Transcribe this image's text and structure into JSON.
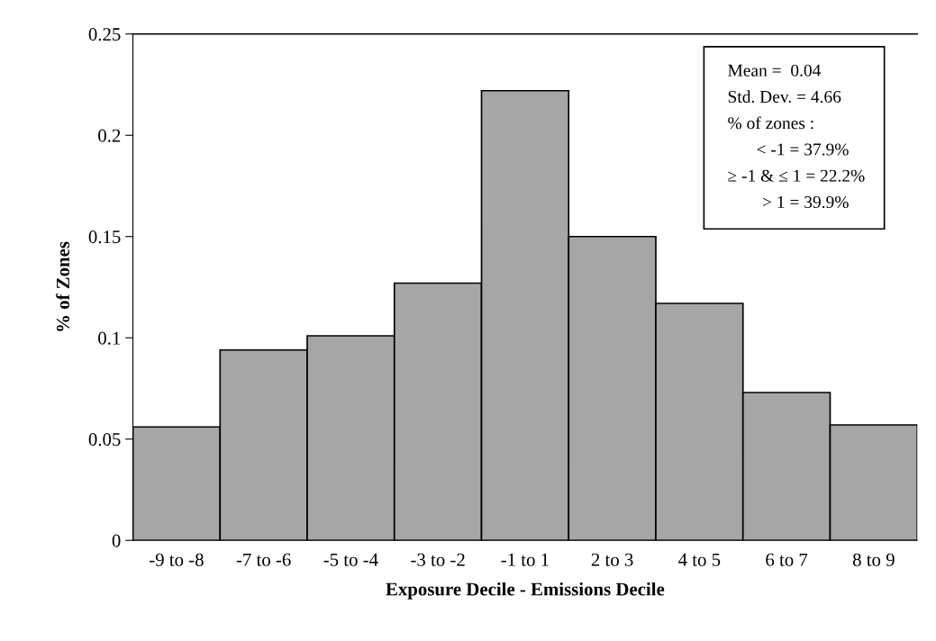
{
  "chart_data": {
    "type": "bar",
    "xlabel": "Exposure Decile - Emissions Decile",
    "ylabel": "% of Zones",
    "categories": [
      "-9 to -8",
      "-7 to -6",
      "-5 to -4",
      "-3 to -2",
      "-1 to 1",
      "2 to 3",
      "4 to 5",
      "6 to 7",
      "8 to 9"
    ],
    "values": [
      0.056,
      0.094,
      0.101,
      0.127,
      0.222,
      0.15,
      0.117,
      0.073,
      0.057
    ],
    "color": "#a6a6a6",
    "ylim": [
      0,
      0.25
    ],
    "yticks": [
      {
        "value": 0,
        "label": "0"
      },
      0.05,
      0.1,
      0.15,
      0.2,
      0.25
    ],
    "grid": false,
    "legend": false,
    "annotations": [
      "Mean =  0.04",
      "Std. Dev. = 4.66",
      "% of zones :",
      "< -1 = 37.9%",
      "≥ -1 & ≤ 1 = 22.2%",
      "> 1 = 39.9%"
    ]
  }
}
